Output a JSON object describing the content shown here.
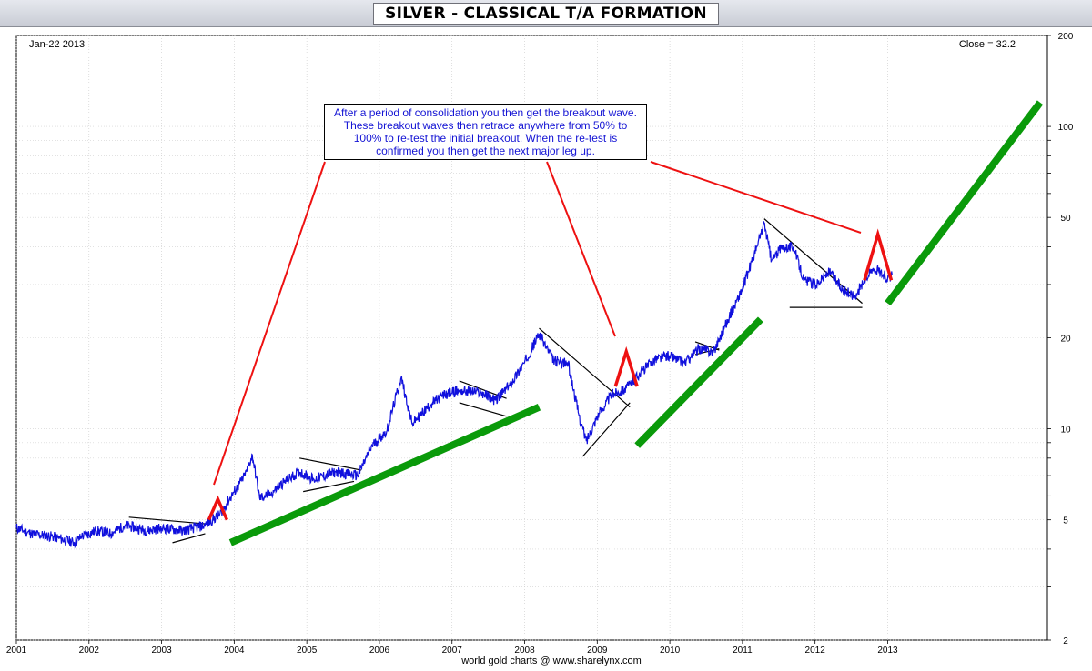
{
  "title": "SILVER - CLASSICAL T/A FORMATION",
  "date_label": "Jan-22  2013",
  "close_label": "Close = 32.2",
  "credit": "world gold charts @ www.sharelynx.com",
  "annotation": "After a period of consolidation you then get the breakout wave. These breakout waves then retrace anywhere from 50% to 100% to re-test the initial breakout. When the re-test is confirmed you then get the next major leg up.",
  "colors": {
    "price": "#1010dd",
    "trend_up": "#0a9a0a",
    "breakout_marker": "#ee1111",
    "pattern_lines": "#000000"
  },
  "chart_data": {
    "type": "line",
    "title": "SILVER - CLASSICAL T/A FORMATION",
    "y_scale": "log",
    "ylim": [
      2,
      200
    ],
    "xlim": [
      2001.0,
      2015.2
    ],
    "x_ticks": [
      "2001",
      "2002",
      "2003",
      "2004",
      "2005",
      "2006",
      "2007",
      "2008",
      "2009",
      "2010",
      "2011",
      "2012",
      "2013"
    ],
    "y_ticks": [
      "2",
      "5",
      "10",
      "20",
      "50",
      "100",
      "200"
    ],
    "grid": true,
    "series": [
      {
        "points": [
          [
            2001.0,
            4.7
          ],
          [
            2001.2,
            4.5
          ],
          [
            2001.5,
            4.4
          ],
          [
            2001.8,
            4.2
          ],
          [
            2001.9,
            4.4
          ],
          [
            2002.1,
            4.6
          ],
          [
            2002.3,
            4.5
          ],
          [
            2002.5,
            4.8
          ],
          [
            2002.8,
            4.6
          ],
          [
            2003.0,
            4.7
          ],
          [
            2003.3,
            4.6
          ],
          [
            2003.6,
            4.8
          ],
          [
            2003.8,
            5.2
          ],
          [
            2004.0,
            6.2
          ],
          [
            2004.15,
            7.0
          ],
          [
            2004.25,
            8.2
          ],
          [
            2004.35,
            5.9
          ],
          [
            2004.5,
            6.1
          ],
          [
            2004.7,
            6.7
          ],
          [
            2004.9,
            7.2
          ],
          [
            2005.1,
            6.8
          ],
          [
            2005.4,
            7.2
          ],
          [
            2005.7,
            7.0
          ],
          [
            2005.9,
            8.8
          ],
          [
            2006.1,
            9.8
          ],
          [
            2006.3,
            14.8
          ],
          [
            2006.45,
            10.4
          ],
          [
            2006.7,
            12.0
          ],
          [
            2006.9,
            13.0
          ],
          [
            2007.1,
            13.4
          ],
          [
            2007.4,
            13.2
          ],
          [
            2007.6,
            12.4
          ],
          [
            2007.8,
            14.0
          ],
          [
            2008.0,
            16.6
          ],
          [
            2008.2,
            20.6
          ],
          [
            2008.4,
            16.8
          ],
          [
            2008.6,
            16.4
          ],
          [
            2008.75,
            11.0
          ],
          [
            2008.85,
            9.1
          ],
          [
            2009.0,
            11.0
          ],
          [
            2009.2,
            13.0
          ],
          [
            2009.4,
            13.6
          ],
          [
            2009.6,
            15.4
          ],
          [
            2009.8,
            17.0
          ],
          [
            2010.0,
            17.5
          ],
          [
            2010.2,
            16.5
          ],
          [
            2010.4,
            18.4
          ],
          [
            2010.6,
            18.0
          ],
          [
            2010.8,
            23.0
          ],
          [
            2011.0,
            29.0
          ],
          [
            2011.2,
            40.0
          ],
          [
            2011.3,
            48.0
          ],
          [
            2011.4,
            36.0
          ],
          [
            2011.55,
            40.0
          ],
          [
            2011.7,
            40.0
          ],
          [
            2011.85,
            31.0
          ],
          [
            2012.0,
            30.0
          ],
          [
            2012.2,
            33.0
          ],
          [
            2012.4,
            28.5
          ],
          [
            2012.55,
            27.5
          ],
          [
            2012.7,
            31.5
          ],
          [
            2012.8,
            34.0
          ],
          [
            2012.9,
            33.0
          ],
          [
            2013.0,
            31.5
          ],
          [
            2013.06,
            32.2
          ]
        ]
      }
    ]
  }
}
